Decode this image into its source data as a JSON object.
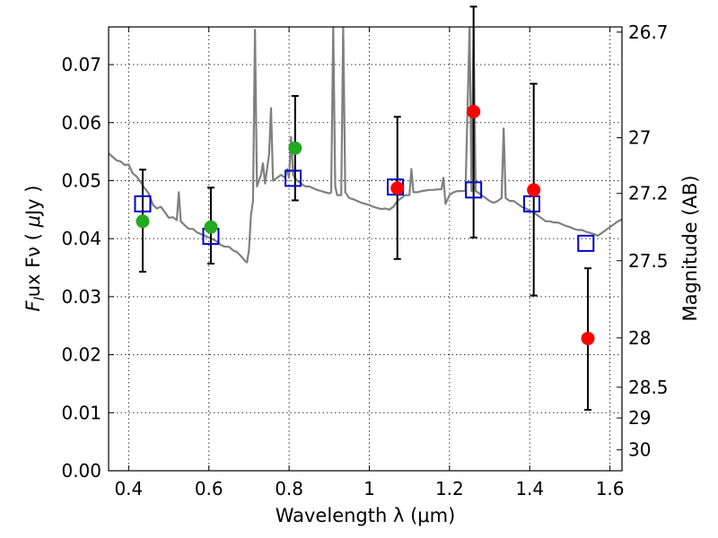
{
  "chart_data": {
    "type": "scatter",
    "title": "",
    "xlabel": "Wavelength  λ (μm)",
    "ylabel": "Flux  Fν  ( μJy )",
    "y2label": "Magnitude (AB)",
    "xlim": [
      0.35,
      1.63
    ],
    "ylim": [
      0.0,
      0.0765
    ],
    "grid": true,
    "x_ticks": [
      0.4,
      0.6,
      0.8,
      1.0,
      1.2,
      1.4,
      1.6
    ],
    "x_tick_labels": [
      "0.4",
      "0.6",
      "0.8",
      "1",
      "1.2",
      "1.4",
      "1.6"
    ],
    "y_ticks": [
      0.0,
      0.01,
      0.02,
      0.03,
      0.04,
      0.05,
      0.06,
      0.07
    ],
    "y_tick_labels": [
      "0.00",
      "0.01",
      "0.02",
      "0.03",
      "0.04",
      "0.05",
      "0.06",
      "0.07"
    ],
    "y2_ticks": [
      {
        "label": "26.7",
        "flux": 0.0756
      },
      {
        "label": "27",
        "flux": 0.0574
      },
      {
        "label": "27.2",
        "flux": 0.0478
      },
      {
        "label": "27.5",
        "flux": 0.0362
      },
      {
        "label": "28",
        "flux": 0.0229
      },
      {
        "label": "28.5",
        "flux": 0.0144
      },
      {
        "label": "29",
        "flux": 0.0091
      },
      {
        "label": "30",
        "flux": 0.0036
      }
    ],
    "model_spectrum": {
      "color": "#808080",
      "points": [
        [
          0.35,
          0.0547
        ],
        [
          0.36,
          0.0541
        ],
        [
          0.37,
          0.0535
        ],
        [
          0.38,
          0.0533
        ],
        [
          0.39,
          0.0527
        ],
        [
          0.4,
          0.0528
        ],
        [
          0.41,
          0.0513
        ],
        [
          0.42,
          0.0507
        ],
        [
          0.43,
          0.0497
        ],
        [
          0.44,
          0.0487
        ],
        [
          0.45,
          0.0478
        ],
        [
          0.46,
          0.0459
        ],
        [
          0.47,
          0.0452
        ],
        [
          0.48,
          0.0455
        ],
        [
          0.49,
          0.0446
        ],
        [
          0.5,
          0.0436
        ],
        [
          0.51,
          0.0437
        ],
        [
          0.52,
          0.0432
        ],
        [
          0.525,
          0.048
        ],
        [
          0.53,
          0.043
        ],
        [
          0.54,
          0.0423
        ],
        [
          0.55,
          0.0417
        ],
        [
          0.56,
          0.0417
        ],
        [
          0.57,
          0.0411
        ],
        [
          0.58,
          0.0408
        ],
        [
          0.59,
          0.0405
        ],
        [
          0.6,
          0.0402
        ],
        [
          0.61,
          0.0399
        ],
        [
          0.62,
          0.0395
        ],
        [
          0.63,
          0.0389
        ],
        [
          0.64,
          0.0386
        ],
        [
          0.65,
          0.0386
        ],
        [
          0.66,
          0.038
        ],
        [
          0.67,
          0.0377
        ],
        [
          0.68,
          0.037
        ],
        [
          0.69,
          0.0362
        ],
        [
          0.695,
          0.0359
        ],
        [
          0.7,
          0.038
        ],
        [
          0.705,
          0.044
        ],
        [
          0.71,
          0.0465
        ],
        [
          0.715,
          0.076
        ],
        [
          0.72,
          0.049
        ],
        [
          0.73,
          0.051
        ],
        [
          0.735,
          0.053
        ],
        [
          0.74,
          0.0495
        ],
        [
          0.75,
          0.0545
        ],
        [
          0.755,
          0.0625
        ],
        [
          0.76,
          0.05
        ],
        [
          0.77,
          0.0505
        ],
        [
          0.78,
          0.051
        ],
        [
          0.79,
          0.0505
        ],
        [
          0.795,
          0.052
        ],
        [
          0.8,
          0.0505
        ],
        [
          0.805,
          0.0575
        ],
        [
          0.81,
          0.051
        ],
        [
          0.82,
          0.05
        ],
        [
          0.83,
          0.0495
        ],
        [
          0.84,
          0.049
        ],
        [
          0.85,
          0.049
        ],
        [
          0.86,
          0.0487
        ],
        [
          0.87,
          0.0484
        ],
        [
          0.88,
          0.0482
        ],
        [
          0.89,
          0.048
        ],
        [
          0.9,
          0.0478
        ],
        [
          0.905,
          0.048
        ],
        [
          0.91,
          0.0765
        ],
        [
          0.915,
          0.049
        ],
        [
          0.92,
          0.0475
        ],
        [
          0.93,
          0.0475
        ],
        [
          0.935,
          0.0765
        ],
        [
          0.94,
          0.048
        ],
        [
          0.95,
          0.047
        ],
        [
          0.96,
          0.0468
        ],
        [
          0.97,
          0.0465
        ],
        [
          0.98,
          0.0462
        ],
        [
          0.99,
          0.046
        ],
        [
          1.0,
          0.0458
        ],
        [
          1.01,
          0.0455
        ],
        [
          1.02,
          0.0453
        ],
        [
          1.03,
          0.0451
        ],
        [
          1.04,
          0.0452
        ],
        [
          1.05,
          0.045
        ],
        [
          1.06,
          0.0455
        ],
        [
          1.07,
          0.0465
        ],
        [
          1.08,
          0.047
        ],
        [
          1.09,
          0.0475
        ],
        [
          1.1,
          0.0475
        ],
        [
          1.105,
          0.052
        ],
        [
          1.11,
          0.048
        ],
        [
          1.12,
          0.048
        ],
        [
          1.13,
          0.0482
        ],
        [
          1.14,
          0.0483
        ],
        [
          1.15,
          0.0484
        ],
        [
          1.16,
          0.0484
        ],
        [
          1.17,
          0.0485
        ],
        [
          1.18,
          0.0485
        ],
        [
          1.185,
          0.0505
        ],
        [
          1.19,
          0.046
        ],
        [
          1.2,
          0.0475
        ],
        [
          1.21,
          0.048
        ],
        [
          1.22,
          0.0482
        ],
        [
          1.23,
          0.0482
        ],
        [
          1.24,
          0.0483
        ],
        [
          1.25,
          0.0765
        ],
        [
          1.255,
          0.0482
        ],
        [
          1.26,
          0.0765
        ],
        [
          1.265,
          0.0482
        ],
        [
          1.27,
          0.048
        ],
        [
          1.28,
          0.0475
        ],
        [
          1.29,
          0.047
        ],
        [
          1.3,
          0.0465
        ],
        [
          1.31,
          0.0462
        ],
        [
          1.32,
          0.0465
        ],
        [
          1.33,
          0.047
        ],
        [
          1.335,
          0.059
        ],
        [
          1.34,
          0.047
        ],
        [
          1.35,
          0.0465
        ],
        [
          1.36,
          0.0465
        ],
        [
          1.37,
          0.046
        ],
        [
          1.38,
          0.0455
        ],
        [
          1.39,
          0.0452
        ],
        [
          1.4,
          0.0448
        ],
        [
          1.41,
          0.0445
        ],
        [
          1.42,
          0.044
        ],
        [
          1.43,
          0.0435
        ],
        [
          1.44,
          0.043
        ],
        [
          1.45,
          0.043
        ],
        [
          1.46,
          0.0428
        ],
        [
          1.47,
          0.0428
        ],
        [
          1.48,
          0.0425
        ],
        [
          1.49,
          0.0422
        ],
        [
          1.5,
          0.042
        ],
        [
          1.51,
          0.0417
        ],
        [
          1.52,
          0.0415
        ],
        [
          1.53,
          0.0415
        ],
        [
          1.54,
          0.0412
        ],
        [
          1.55,
          0.041
        ],
        [
          1.56,
          0.0408
        ],
        [
          1.57,
          0.0405
        ],
        [
          1.58,
          0.041
        ],
        [
          1.59,
          0.0415
        ],
        [
          1.6,
          0.042
        ],
        [
          1.61,
          0.0425
        ],
        [
          1.62,
          0.043
        ],
        [
          1.63,
          0.0433
        ]
      ]
    },
    "model_photometry": {
      "color": "#0000cc",
      "points": [
        [
          0.435,
          0.046
        ],
        [
          0.605,
          0.0404
        ],
        [
          0.81,
          0.0504
        ],
        [
          1.065,
          0.0489
        ],
        [
          1.26,
          0.0484
        ],
        [
          1.405,
          0.046
        ],
        [
          1.54,
          0.0392
        ]
      ]
    },
    "observed_green": {
      "color": "#22aa22",
      "points": [
        {
          "x": 0.435,
          "y": 0.043,
          "err_lo": 0.0087,
          "err_hi": 0.0089
        },
        {
          "x": 0.605,
          "y": 0.042,
          "err_lo": 0.0063,
          "err_hi": 0.0068
        },
        {
          "x": 0.815,
          "y": 0.0556,
          "err_lo": 0.009,
          "err_hi": 0.009
        }
      ]
    },
    "observed_red": {
      "color": "#ff0000",
      "points": [
        {
          "x": 1.07,
          "y": 0.0487,
          "err_lo": 0.0122,
          "err_hi": 0.0123
        },
        {
          "x": 1.26,
          "y": 0.0619,
          "err_lo": 0.0217,
          "err_hi": 0.0181
        },
        {
          "x": 1.41,
          "y": 0.0484,
          "err_lo": 0.0182,
          "err_hi": 0.0183
        },
        {
          "x": 1.545,
          "y": 0.0228,
          "err_lo": 0.0123,
          "err_hi": 0.0121
        }
      ]
    }
  }
}
